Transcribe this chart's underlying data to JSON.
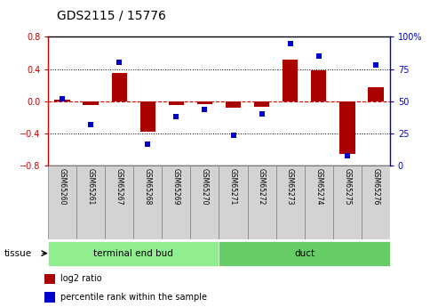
{
  "title": "GDS2115 / 15776",
  "samples": [
    "GSM65260",
    "GSM65261",
    "GSM65267",
    "GSM65268",
    "GSM65269",
    "GSM65270",
    "GSM65271",
    "GSM65272",
    "GSM65273",
    "GSM65274",
    "GSM65275",
    "GSM65276"
  ],
  "log2_ratio": [
    0.02,
    -0.05,
    0.35,
    -0.38,
    -0.05,
    -0.04,
    -0.08,
    -0.07,
    0.52,
    0.38,
    -0.65,
    0.18
  ],
  "percentile_rank": [
    52,
    32,
    80,
    17,
    38,
    44,
    24,
    40,
    95,
    85,
    8,
    78
  ],
  "tissue_groups": [
    {
      "label": "terminal end bud",
      "start": 0,
      "end": 5,
      "color": "#90EE90"
    },
    {
      "label": "duct",
      "start": 6,
      "end": 11,
      "color": "#66CC66"
    }
  ],
  "bar_color": "#AA0000",
  "dot_color": "#0000CC",
  "zero_line_color": "#CC0000",
  "grid_color": "#000000",
  "ylim_left": [
    -0.8,
    0.8
  ],
  "ylim_right": [
    0,
    100
  ],
  "yticks_left": [
    -0.8,
    -0.4,
    0.0,
    0.4,
    0.8
  ],
  "yticks_right": [
    0,
    25,
    50,
    75,
    100
  ],
  "ylabel_left_color": "#CC0000",
  "ylabel_right_color": "#0000CC",
  "legend_log2_label": "log2 ratio",
  "legend_percentile_label": "percentile rank within the sample",
  "tissue_label": "tissue",
  "background_color": "#ffffff",
  "plot_bg_color": "#ffffff",
  "label_bg_color": "#D3D3D3"
}
